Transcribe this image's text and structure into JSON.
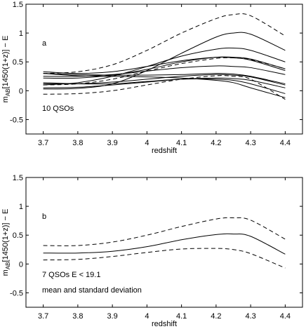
{
  "chart_data": [
    {
      "type": "line",
      "panel_label": "a",
      "annotation_lines": [
        "10 QSOs"
      ],
      "xlabel": "redshift",
      "ylabel": {
        "prefix": "m",
        "sub": "AB",
        "suffix": "[1450(1+z)] − E"
      },
      "xlim": [
        3.65,
        4.45
      ],
      "ylim": [
        -0.75,
        1.5
      ],
      "xticks": [
        "3.7",
        "3.8",
        "3.9",
        "4",
        "4.1",
        "4.2",
        "4.3",
        "4.4"
      ],
      "xtick_values": [
        3.7,
        3.8,
        3.9,
        4.0,
        4.1,
        4.2,
        4.3,
        4.4
      ],
      "yticks": [
        "-0.5",
        "0",
        "0.5",
        "1",
        "1.5"
      ],
      "ytick_values": [
        -0.5,
        0,
        0.5,
        1,
        1.5
      ],
      "x": [
        3.7,
        3.8,
        3.9,
        4.0,
        4.1,
        4.2,
        4.25,
        4.3,
        4.4
      ],
      "series": [
        {
          "style": "solid",
          "values": [
            0.03,
            0.04,
            0.12,
            0.35,
            0.65,
            0.93,
            1.0,
            0.98,
            0.7
          ]
        },
        {
          "style": "solid",
          "values": [
            0.1,
            0.14,
            0.25,
            0.42,
            0.6,
            0.72,
            0.74,
            0.7,
            0.5
          ]
        },
        {
          "style": "solid",
          "values": [
            0.22,
            0.22,
            0.27,
            0.37,
            0.5,
            0.58,
            0.58,
            0.55,
            0.38
          ]
        },
        {
          "style": "solid",
          "values": [
            0.33,
            0.3,
            0.33,
            0.42,
            0.52,
            0.58,
            0.57,
            0.53,
            0.35
          ]
        },
        {
          "style": "solid",
          "values": [
            0.25,
            0.25,
            0.28,
            0.34,
            0.4,
            0.43,
            0.42,
            0.4,
            0.28
          ]
        },
        {
          "style": "solid",
          "values": [
            0.3,
            0.28,
            0.27,
            0.27,
            0.28,
            0.3,
            0.29,
            0.25,
            0.12
          ]
        },
        {
          "style": "solid",
          "values": [
            0.12,
            0.12,
            0.15,
            0.2,
            0.25,
            0.28,
            0.27,
            0.24,
            0.1
          ]
        },
        {
          "style": "solid",
          "values": [
            0.05,
            0.06,
            0.1,
            0.15,
            0.2,
            0.22,
            0.21,
            0.18,
            0.05
          ]
        },
        {
          "style": "solid",
          "values": [
            0.14,
            0.12,
            0.12,
            0.16,
            0.2,
            0.2,
            0.18,
            0.12,
            -0.05
          ]
        },
        {
          "style": "solid",
          "values": [
            0.3,
            0.26,
            0.25,
            0.24,
            0.22,
            0.18,
            0.14,
            0.05,
            -0.12
          ]
        },
        {
          "style": "dashed",
          "values": [
            0.3,
            0.33,
            0.45,
            0.7,
            1.0,
            1.25,
            1.32,
            1.3,
            0.95
          ]
        },
        {
          "style": "dashed",
          "values": [
            0.1,
            0.12,
            0.2,
            0.34,
            0.47,
            0.56,
            0.57,
            0.54,
            0.38
          ]
        },
        {
          "style": "dashed",
          "values": [
            -0.06,
            -0.05,
            0.0,
            0.1,
            0.2,
            0.26,
            0.25,
            0.2,
            -0.15
          ]
        }
      ]
    },
    {
      "type": "line",
      "panel_label": "b",
      "annotation_lines": [
        "7 QSOs  E < 19.1",
        "mean and standard deviation"
      ],
      "xlabel": "redshift",
      "ylabel": {
        "prefix": "m",
        "sub": "AB",
        "suffix": "[1450(1+z)] − E"
      },
      "xlim": [
        3.65,
        4.45
      ],
      "ylim": [
        -0.75,
        1.5
      ],
      "xticks": [
        "3.7",
        "3.8",
        "3.9",
        "4",
        "4.1",
        "4.2",
        "4.3",
        "4.4"
      ],
      "xtick_values": [
        3.7,
        3.8,
        3.9,
        4.0,
        4.1,
        4.2,
        4.3,
        4.4
      ],
      "yticks": [
        "-0.5",
        "0",
        "0.5",
        "1",
        "1.5"
      ],
      "ytick_values": [
        -0.5,
        0,
        0.5,
        1,
        1.5
      ],
      "x": [
        3.7,
        3.8,
        3.9,
        4.0,
        4.1,
        4.2,
        4.25,
        4.3,
        4.4
      ],
      "series": [
        {
          "style": "solid",
          "values": [
            0.19,
            0.19,
            0.22,
            0.3,
            0.42,
            0.51,
            0.52,
            0.48,
            0.17
          ]
        },
        {
          "style": "dashed",
          "values": [
            0.32,
            0.32,
            0.38,
            0.5,
            0.65,
            0.78,
            0.8,
            0.76,
            0.43
          ]
        },
        {
          "style": "dashed",
          "values": [
            0.07,
            0.08,
            0.13,
            0.2,
            0.26,
            0.27,
            0.25,
            0.18,
            -0.07
          ]
        }
      ]
    }
  ]
}
